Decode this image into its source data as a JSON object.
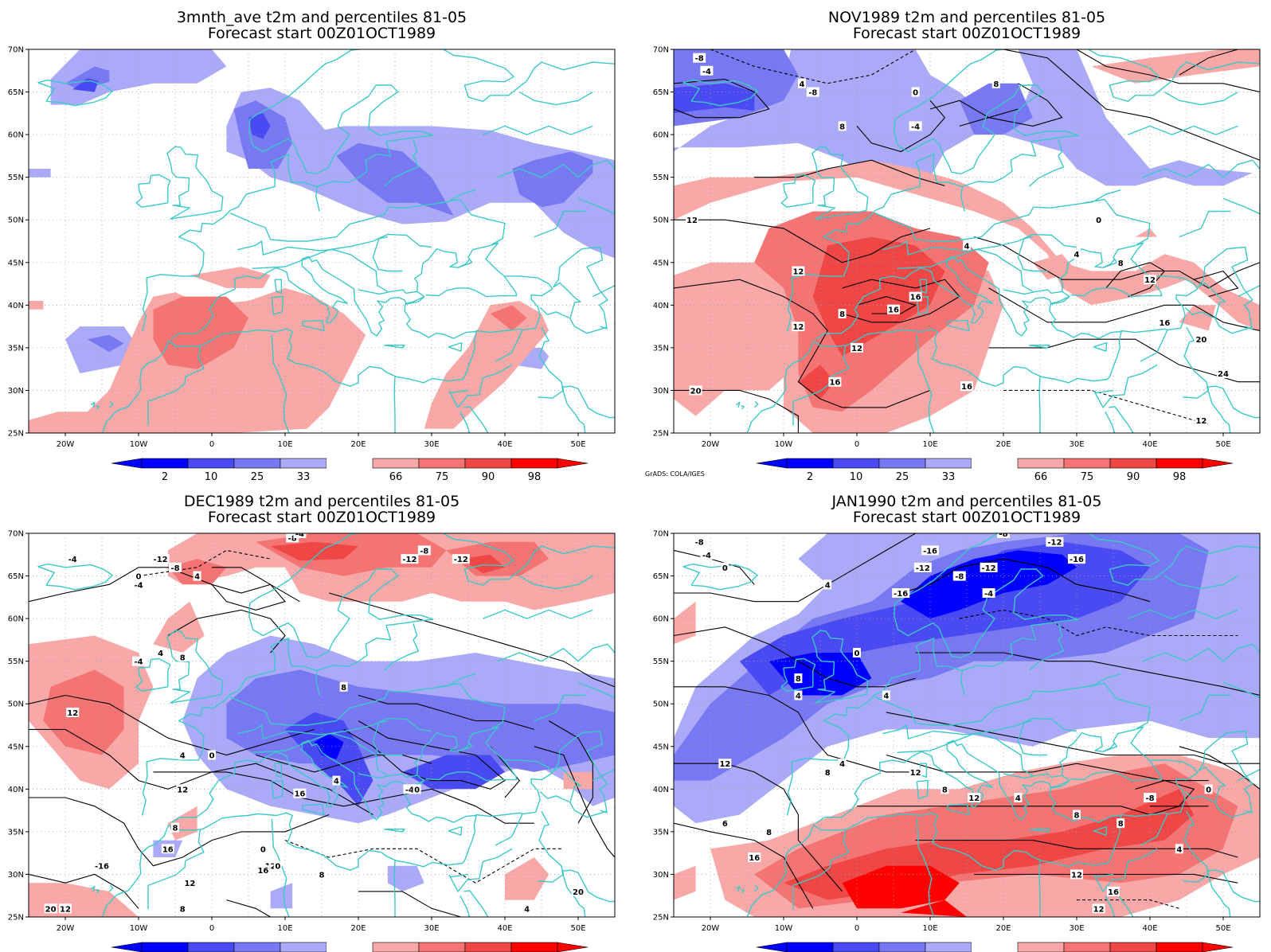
{
  "colors": {
    "b2": "#0000ff",
    "b10": "#4a4af2",
    "b25": "#7878f3",
    "b33": "#aaaaf8",
    "r66": "#f9a8a8",
    "r75": "#f47474",
    "r90": "#ef4646",
    "r98": "#ff0000",
    "coast": "#3cc8c8",
    "grid": "#a0a0a0",
    "contour": "#000000"
  },
  "axes": {
    "lon_labels": [
      "20W",
      "10W",
      "0",
      "10E",
      "20E",
      "30E",
      "40E",
      "50E"
    ],
    "lat_labels": [
      "70N",
      "65N",
      "60N",
      "55N",
      "50N",
      "45N",
      "40N",
      "35N",
      "30N",
      "25N"
    ]
  },
  "colorbar": {
    "labels": [
      "2",
      "10",
      "25",
      "33",
      "66",
      "75",
      "90",
      "98"
    ]
  },
  "credit": "GrADS: COLA/IGES",
  "panels": [
    {
      "id": "3mnth",
      "title_line1": "3mnth_ave t2m and percentiles 81-05",
      "title_line2": "Forecast start 00Z01OCT1989",
      "has_credit": false,
      "contour_labels": []
    },
    {
      "id": "nov",
      "title_line1": "NOV1989 t2m and percentiles 81-05",
      "title_line2": "Forecast start 00Z01OCT1989",
      "has_credit": true,
      "contour_labels": [
        "-8",
        "-4",
        "4",
        "-8",
        "8",
        "0",
        "-4",
        "8",
        "12",
        "4",
        "12",
        "16",
        "8",
        "12",
        "16",
        "12",
        "16",
        "20",
        "16",
        "0",
        "4",
        "8",
        "12",
        "16",
        "20",
        "24",
        "12"
      ]
    },
    {
      "id": "dec",
      "title_line1": "DEC1989 t2m and percentiles 81-05",
      "title_line2": "Forecast start 00Z01OCT1989",
      "has_credit": true,
      "contour_labels": [
        "-8",
        "-4",
        "-12",
        "-8",
        "-12",
        "-8",
        "-12",
        "-4",
        "4",
        "0",
        "8",
        "4",
        "12",
        "-4",
        "-4",
        "8",
        "4",
        "0",
        "-4",
        "0",
        "4",
        "16",
        "12",
        "8",
        "16",
        "-16",
        "12",
        "12",
        "16",
        "20",
        "12",
        "8",
        "0",
        "0",
        "8",
        "4",
        "20"
      ]
    },
    {
      "id": "jan",
      "title_line1": "JAN1990 t2m and percentiles 81-05",
      "title_line2": "Forecast start 00Z01OCT1989",
      "has_credit": true,
      "contour_labels": [
        "-8",
        "-4",
        "0",
        "4",
        "8",
        "12",
        "-12",
        "-16",
        "-12",
        "-8",
        "-4",
        "-16",
        "-8",
        "-12",
        "-16",
        "0",
        "4",
        "4",
        "4",
        "8",
        "12",
        "8",
        "12",
        "4",
        "8",
        "-8",
        "0",
        "4",
        "6",
        "8",
        "16",
        "12",
        "12",
        "16",
        "8"
      ]
    }
  ]
}
